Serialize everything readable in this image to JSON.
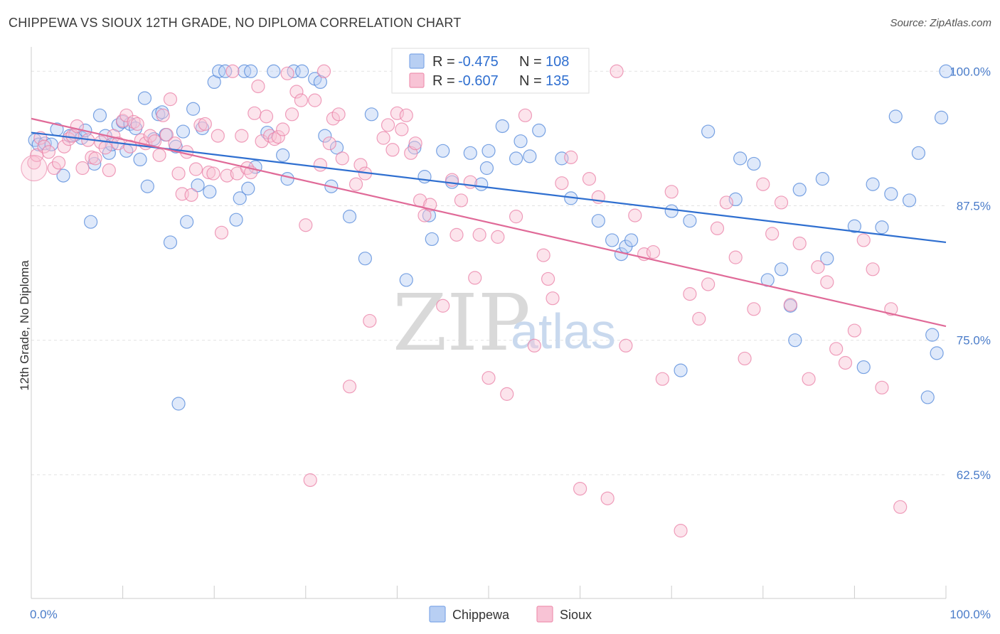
{
  "header": {
    "title": "CHIPPEWA VS SIOUX 12TH GRADE, NO DIPLOMA CORRELATION CHART",
    "source": "Source: ZipAtlas.com"
  },
  "watermark": {
    "zip": "ZIP",
    "atlas": "atlas"
  },
  "legend": {
    "r_label": "R =",
    "n_label": "N =",
    "entries": [
      {
        "name": "Chippewa",
        "r": "-0.475",
        "n": "108",
        "color": "#7fa8e8",
        "fill": "#b8cff3"
      },
      {
        "name": "Sioux",
        "r": "-0.607",
        "n": "135",
        "color": "#ef93b1",
        "fill": "#f8c3d5"
      }
    ]
  },
  "chart_data": {
    "type": "scatter",
    "title": "CHIPPEWA VS SIOUX 12TH GRADE, NO DIPLOMA CORRELATION CHART",
    "xlabel": "",
    "ylabel": "12th Grade, No Diploma",
    "xlim": [
      0,
      100
    ],
    "ylim": [
      51,
      102
    ],
    "x_ticks": [
      "0.0%",
      "100.0%"
    ],
    "y_ticks": [
      {
        "value": 100.0,
        "label": "100.0%"
      },
      {
        "value": 87.5,
        "label": "87.5%"
      },
      {
        "value": 75.0,
        "label": "75.0%"
      },
      {
        "value": 62.5,
        "label": "62.5%"
      }
    ],
    "grid": true,
    "legend_position": "top-center",
    "series": [
      {
        "name": "Chippewa",
        "color": "#4f86d9",
        "line_color": "#2f6fd0",
        "trend": {
          "x": [
            0,
            100
          ],
          "y": [
            94.3,
            84.1
          ]
        },
        "points": [
          [
            0.4,
            93.6
          ],
          [
            0.8,
            93.2
          ],
          [
            1.5,
            93.3
          ],
          [
            2.2,
            93.2
          ],
          [
            2.8,
            94.6
          ],
          [
            3.5,
            90.3
          ],
          [
            4.2,
            94.0
          ],
          [
            4.8,
            94.1
          ],
          [
            5.5,
            93.8
          ],
          [
            5.9,
            94.5
          ],
          [
            6.5,
            86.0
          ],
          [
            6.9,
            91.4
          ],
          [
            7.5,
            95.9
          ],
          [
            8.1,
            94.0
          ],
          [
            8.5,
            92.4
          ],
          [
            8.8,
            93.2
          ],
          [
            9.5,
            95.0
          ],
          [
            10.0,
            95.3
          ],
          [
            10.4,
            92.6
          ],
          [
            10.8,
            95.1
          ],
          [
            11.4,
            94.7
          ],
          [
            11.9,
            91.8
          ],
          [
            12.4,
            97.5
          ],
          [
            12.7,
            89.3
          ],
          [
            13.4,
            93.7
          ],
          [
            13.9,
            96.0
          ],
          [
            14.3,
            96.2
          ],
          [
            14.7,
            94.1
          ],
          [
            15.2,
            84.1
          ],
          [
            15.8,
            93.0
          ],
          [
            16.1,
            69.1
          ],
          [
            16.6,
            94.4
          ],
          [
            17.0,
            86.0
          ],
          [
            17.7,
            96.5
          ],
          [
            18.2,
            89.4
          ],
          [
            18.7,
            94.7
          ],
          [
            19.5,
            88.8
          ],
          [
            20.0,
            99.0
          ],
          [
            20.5,
            100.0
          ],
          [
            21.2,
            100.0
          ],
          [
            22.4,
            86.2
          ],
          [
            22.8,
            88.2
          ],
          [
            23.3,
            100.0
          ],
          [
            23.7,
            89.1
          ],
          [
            24.0,
            100.0
          ],
          [
            24.5,
            91.1
          ],
          [
            25.8,
            94.3
          ],
          [
            26.5,
            100.0
          ],
          [
            27.5,
            92.2
          ],
          [
            28.0,
            90.0
          ],
          [
            28.7,
            100.0
          ],
          [
            29.6,
            100.0
          ],
          [
            31.0,
            99.3
          ],
          [
            31.6,
            99.0
          ],
          [
            32.1,
            94.0
          ],
          [
            32.8,
            89.3
          ],
          [
            33.4,
            92.9
          ],
          [
            34.8,
            86.5
          ],
          [
            36.5,
            82.6
          ],
          [
            37.2,
            96.0
          ],
          [
            41.0,
            80.6
          ],
          [
            41.9,
            92.9
          ],
          [
            43.0,
            90.2
          ],
          [
            43.8,
            84.4
          ],
          [
            43.5,
            86.6
          ],
          [
            45.0,
            92.6
          ],
          [
            46.0,
            89.7
          ],
          [
            48.0,
            92.4
          ],
          [
            49.2,
            89.5
          ],
          [
            49.8,
            91.0
          ],
          [
            50.0,
            92.6
          ],
          [
            51.5,
            94.9
          ],
          [
            53.0,
            91.9
          ],
          [
            53.5,
            93.5
          ],
          [
            54.5,
            92.1
          ],
          [
            55.5,
            94.5
          ],
          [
            58.0,
            91.9
          ],
          [
            59.0,
            88.2
          ],
          [
            62.0,
            86.1
          ],
          [
            63.5,
            84.3
          ],
          [
            64.5,
            83.0
          ],
          [
            65.0,
            83.7
          ],
          [
            65.6,
            84.3
          ],
          [
            70.0,
            87.0
          ],
          [
            71.0,
            72.2
          ],
          [
            72.0,
            86.1
          ],
          [
            74.0,
            94.4
          ],
          [
            77.0,
            88.1
          ],
          [
            77.5,
            91.9
          ],
          [
            79.0,
            91.4
          ],
          [
            80.5,
            80.6
          ],
          [
            82.0,
            81.6
          ],
          [
            83.0,
            78.2
          ],
          [
            83.5,
            75.0
          ],
          [
            84.0,
            89.0
          ],
          [
            86.5,
            90.0
          ],
          [
            87.0,
            82.6
          ],
          [
            90.0,
            85.6
          ],
          [
            91.0,
            72.5
          ],
          [
            92.0,
            89.5
          ],
          [
            93.0,
            85.5
          ],
          [
            94.0,
            88.6
          ],
          [
            94.5,
            95.8
          ],
          [
            96.0,
            88.0
          ],
          [
            97.0,
            92.4
          ],
          [
            98.0,
            69.7
          ],
          [
            98.5,
            75.5
          ],
          [
            99.0,
            73.8
          ],
          [
            99.5,
            95.7
          ],
          [
            100.0,
            100.0
          ]
        ]
      },
      {
        "name": "Sioux",
        "color": "#ea7fa5",
        "line_color": "#e06a98",
        "trend": {
          "x": [
            0,
            100
          ],
          "y": [
            95.6,
            76.3
          ]
        },
        "points": [
          [
            0.3,
            91.5
          ],
          [
            0.6,
            92.2
          ],
          [
            1.0,
            93.8
          ],
          [
            1.4,
            93.0
          ],
          [
            1.9,
            92.5
          ],
          [
            2.5,
            91.0
          ],
          [
            3.0,
            91.5
          ],
          [
            3.6,
            93.0
          ],
          [
            4.1,
            93.7
          ],
          [
            4.5,
            94.0
          ],
          [
            5.0,
            94.9
          ],
          [
            5.6,
            91.0
          ],
          [
            6.2,
            93.6
          ],
          [
            6.6,
            92.0
          ],
          [
            7.0,
            91.9
          ],
          [
            7.6,
            93.4
          ],
          [
            8.1,
            92.9
          ],
          [
            8.5,
            90.8
          ],
          [
            9.0,
            94.0
          ],
          [
            9.5,
            93.3
          ],
          [
            10.0,
            95.4
          ],
          [
            10.4,
            95.9
          ],
          [
            10.8,
            93.0
          ],
          [
            11.2,
            95.3
          ],
          [
            11.6,
            95.1
          ],
          [
            12.0,
            93.6
          ],
          [
            12.5,
            93.3
          ],
          [
            13.0,
            94.0
          ],
          [
            13.5,
            93.5
          ],
          [
            14.0,
            92.2
          ],
          [
            14.4,
            95.9
          ],
          [
            14.8,
            94.1
          ],
          [
            15.2,
            97.4
          ],
          [
            15.7,
            93.3
          ],
          [
            16.1,
            90.5
          ],
          [
            16.5,
            88.6
          ],
          [
            17.0,
            92.5
          ],
          [
            17.5,
            88.5
          ],
          [
            18.0,
            90.9
          ],
          [
            18.5,
            95.0
          ],
          [
            19.0,
            95.1
          ],
          [
            19.4,
            90.6
          ],
          [
            19.9,
            90.5
          ],
          [
            20.4,
            94.0
          ],
          [
            20.8,
            85.0
          ],
          [
            21.4,
            90.3
          ],
          [
            22.0,
            100.0
          ],
          [
            22.5,
            90.5
          ],
          [
            23.0,
            94.0
          ],
          [
            23.6,
            91.0
          ],
          [
            24.0,
            90.6
          ],
          [
            24.4,
            96.1
          ],
          [
            24.8,
            98.6
          ],
          [
            25.2,
            93.5
          ],
          [
            25.7,
            95.8
          ],
          [
            26.1,
            94.0
          ],
          [
            26.6,
            93.7
          ],
          [
            27.0,
            93.9
          ],
          [
            27.5,
            94.6
          ],
          [
            28.0,
            99.8
          ],
          [
            28.5,
            96.0
          ],
          [
            29.0,
            98.1
          ],
          [
            29.5,
            97.3
          ],
          [
            30.0,
            85.7
          ],
          [
            30.5,
            62.0
          ],
          [
            31.0,
            97.3
          ],
          [
            31.6,
            91.3
          ],
          [
            32.0,
            100.0
          ],
          [
            32.6,
            93.3
          ],
          [
            33.0,
            95.6
          ],
          [
            33.6,
            96.0
          ],
          [
            34.0,
            91.9
          ],
          [
            34.8,
            70.7
          ],
          [
            35.5,
            89.5
          ],
          [
            36.0,
            91.3
          ],
          [
            36.5,
            90.5
          ],
          [
            37.0,
            76.8
          ],
          [
            38.5,
            93.8
          ],
          [
            39.0,
            95.0
          ],
          [
            39.5,
            92.7
          ],
          [
            40.0,
            96.1
          ],
          [
            40.5,
            94.6
          ],
          [
            41.0,
            95.9
          ],
          [
            41.5,
            92.4
          ],
          [
            42.0,
            93.3
          ],
          [
            42.5,
            88.0
          ],
          [
            43.0,
            86.6
          ],
          [
            43.6,
            87.6
          ],
          [
            44.2,
            100.0
          ],
          [
            45.0,
            78.2
          ],
          [
            46.0,
            89.9
          ],
          [
            46.5,
            84.8
          ],
          [
            47.0,
            88.0
          ],
          [
            48.0,
            89.7
          ],
          [
            48.5,
            80.8
          ],
          [
            49.0,
            84.8
          ],
          [
            50.0,
            71.5
          ],
          [
            51.0,
            84.6
          ],
          [
            52.0,
            70.0
          ],
          [
            53.0,
            86.5
          ],
          [
            54.0,
            95.9
          ],
          [
            55.0,
            74.5
          ],
          [
            56.0,
            82.9
          ],
          [
            56.5,
            80.7
          ],
          [
            57.0,
            78.9
          ],
          [
            58.0,
            89.6
          ],
          [
            59.0,
            92.0
          ],
          [
            60.0,
            61.2
          ],
          [
            61.0,
            90.0
          ],
          [
            62.0,
            88.3
          ],
          [
            63.0,
            60.3
          ],
          [
            64.0,
            100.0
          ],
          [
            65.0,
            74.5
          ],
          [
            66.0,
            86.6
          ],
          [
            67.0,
            83.0
          ],
          [
            68.0,
            83.2
          ],
          [
            69.0,
            71.4
          ],
          [
            70.0,
            88.8
          ],
          [
            71.0,
            57.3
          ],
          [
            72.0,
            79.3
          ],
          [
            73.0,
            77.0
          ],
          [
            74.0,
            80.2
          ],
          [
            75.0,
            85.4
          ],
          [
            76.0,
            87.8
          ],
          [
            77.0,
            82.7
          ],
          [
            78.0,
            73.3
          ],
          [
            79.0,
            77.9
          ],
          [
            80.0,
            89.5
          ],
          [
            81.0,
            84.9
          ],
          [
            82.0,
            87.8
          ],
          [
            83.0,
            78.3
          ],
          [
            84.0,
            84.0
          ],
          [
            85.0,
            71.4
          ],
          [
            86.0,
            81.8
          ],
          [
            87.0,
            80.4
          ],
          [
            88.0,
            74.2
          ],
          [
            89.0,
            72.9
          ],
          [
            90.0,
            75.9
          ],
          [
            91.0,
            84.3
          ],
          [
            92.0,
            81.6
          ],
          [
            93.0,
            70.6
          ],
          [
            94.0,
            77.9
          ],
          [
            95.0,
            59.5
          ]
        ]
      }
    ]
  },
  "bottom_legend": [
    {
      "name": "Chippewa"
    },
    {
      "name": "Sioux"
    }
  ]
}
